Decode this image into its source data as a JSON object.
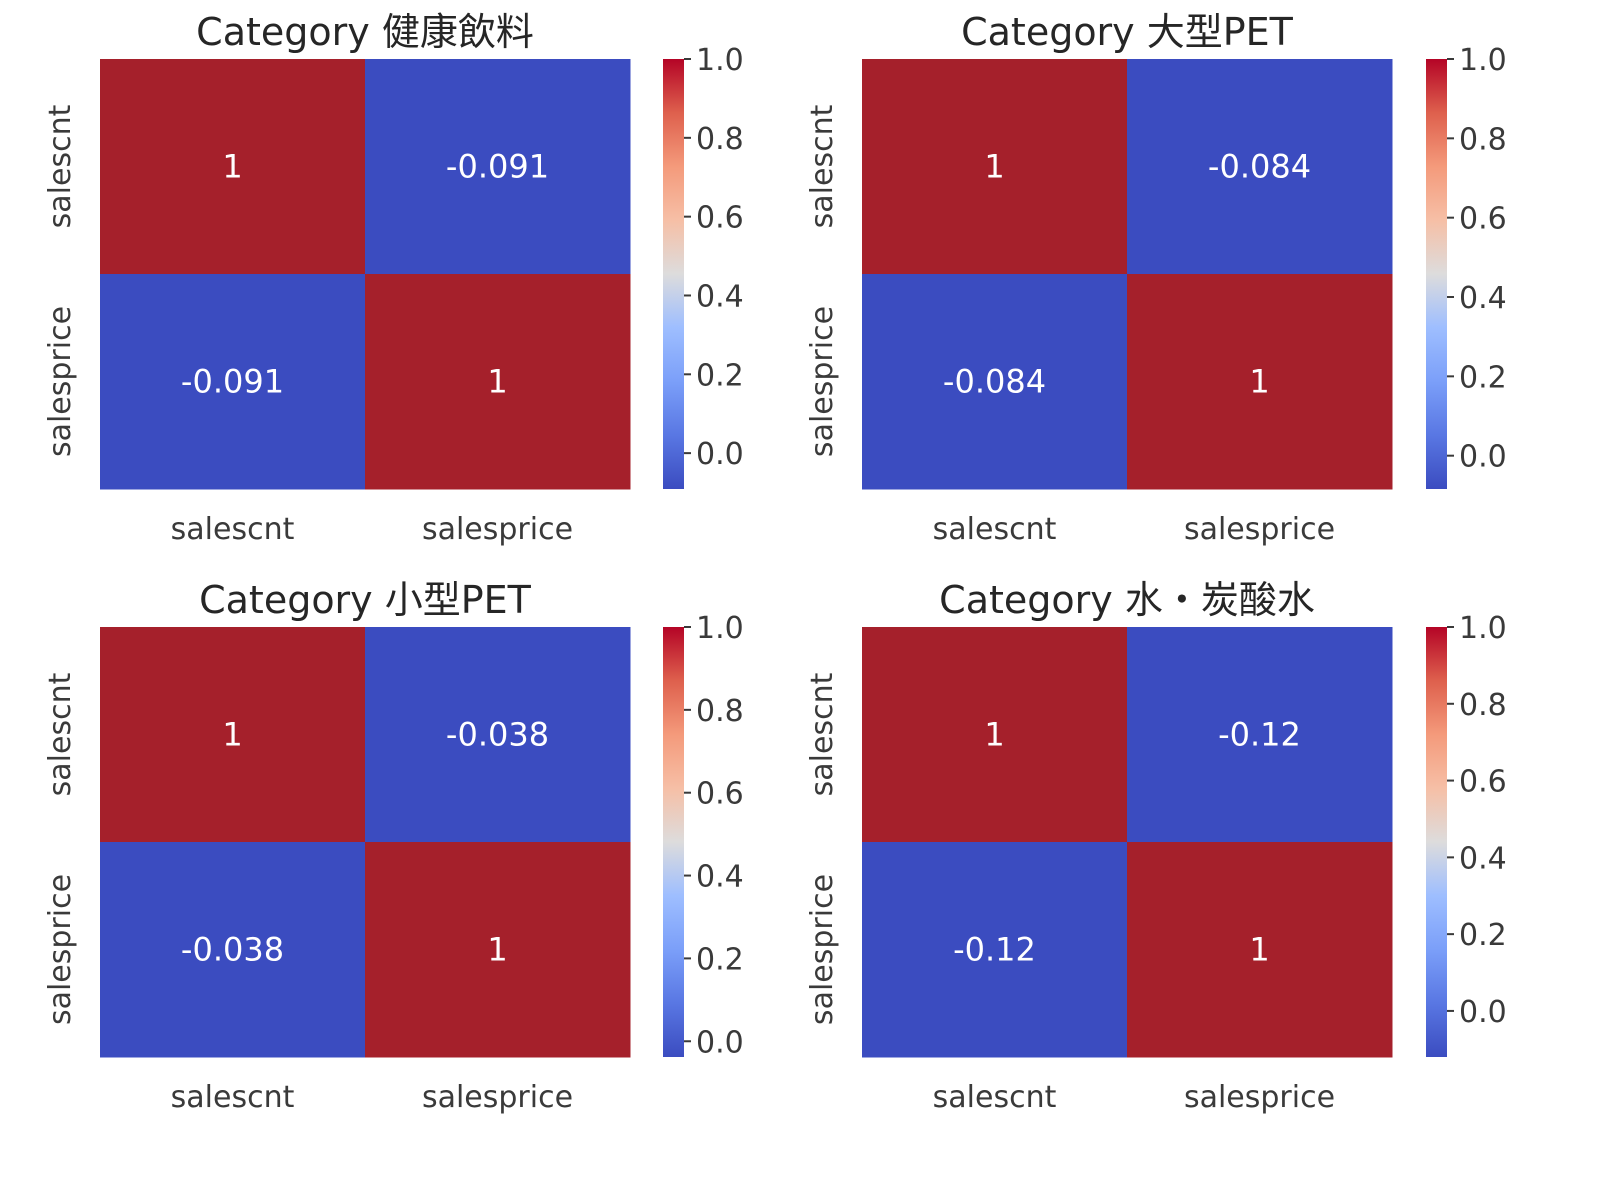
{
  "chart_data": [
    {
      "type": "heatmap",
      "title": "Category 健康飲料",
      "rows": [
        "salescnt",
        "salesprice"
      ],
      "cols": [
        "salescnt",
        "salesprice"
      ],
      "values": [
        [
          1,
          -0.091
        ],
        [
          -0.091,
          1
        ]
      ],
      "annotations": [
        [
          "1",
          "-0.091"
        ],
        [
          "-0.091",
          "1"
        ]
      ],
      "colormap": "coolwarm",
      "vmin": -0.091,
      "vmax": 1.0,
      "colorbar_ticks": [
        "0.0",
        "0.2",
        "0.4",
        "0.6",
        "0.8",
        "1.0"
      ]
    },
    {
      "type": "heatmap",
      "title": "Category 大型PET",
      "rows": [
        "salescnt",
        "salesprice"
      ],
      "cols": [
        "salescnt",
        "salesprice"
      ],
      "values": [
        [
          1,
          -0.084
        ],
        [
          -0.084,
          1
        ]
      ],
      "annotations": [
        [
          "1",
          "-0.084"
        ],
        [
          "-0.084",
          "1"
        ]
      ],
      "colormap": "coolwarm",
      "vmin": -0.084,
      "vmax": 1.0,
      "colorbar_ticks": [
        "0.0",
        "0.2",
        "0.4",
        "0.6",
        "0.8",
        "1.0"
      ]
    },
    {
      "type": "heatmap",
      "title": "Category 小型PET",
      "rows": [
        "salescnt",
        "salesprice"
      ],
      "cols": [
        "salescnt",
        "salesprice"
      ],
      "values": [
        [
          1,
          -0.038
        ],
        [
          -0.038,
          1
        ]
      ],
      "annotations": [
        [
          "1",
          "-0.038"
        ],
        [
          "-0.038",
          "1"
        ]
      ],
      "colormap": "coolwarm",
      "vmin": -0.038,
      "vmax": 1.0,
      "colorbar_ticks": [
        "0.0",
        "0.2",
        "0.4",
        "0.6",
        "0.8",
        "1.0"
      ]
    },
    {
      "type": "heatmap",
      "title": "Category 水・炭酸水",
      "rows": [
        "salescnt",
        "salesprice"
      ],
      "cols": [
        "salescnt",
        "salesprice"
      ],
      "values": [
        [
          1,
          -0.12
        ],
        [
          -0.12,
          1
        ]
      ],
      "annotations": [
        [
          "1",
          "-0.12"
        ],
        [
          "-0.12",
          "1"
        ]
      ],
      "colormap": "coolwarm",
      "vmin": -0.12,
      "vmax": 1.0,
      "colorbar_ticks": [
        "0.0",
        "0.2",
        "0.4",
        "0.6",
        "0.8",
        "1.0"
      ]
    }
  ],
  "colors": {
    "high": "#a5202b",
    "low": "#3b4cc0"
  }
}
